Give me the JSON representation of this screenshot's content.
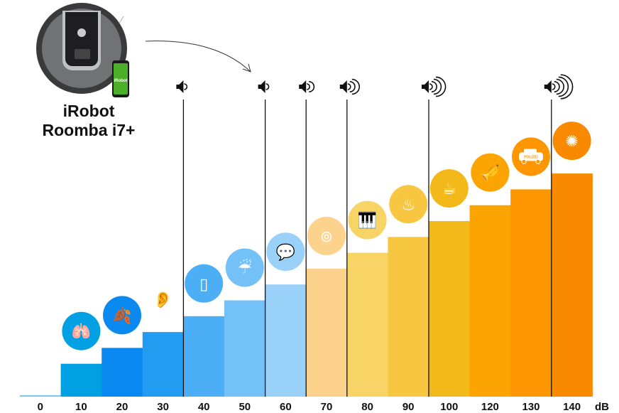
{
  "product": {
    "brand_line": "iRobot",
    "model_line": "Roomba i7+",
    "phone_logo": "iRobot"
  },
  "chart_data": {
    "type": "bar",
    "title": "",
    "xlabel": "",
    "unit_label": "dB",
    "ylabel": "",
    "categories": [
      "0",
      "10",
      "20",
      "30",
      "40",
      "50",
      "60",
      "70",
      "80",
      "90",
      "100",
      "120",
      "130",
      "140"
    ],
    "values": [
      0,
      10,
      20,
      30,
      40,
      50,
      60,
      70,
      80,
      90,
      100,
      120,
      130,
      140
    ],
    "colors": [
      "#7fc6f3",
      "#00a0e2",
      "#0a8af0",
      "#229cf0",
      "#4caff6",
      "#74c1f7",
      "#9ad1f9",
      "#fdd28c",
      "#f8d466",
      "#f7c742",
      "#f3b91b",
      "#fca402",
      "#fd9600",
      "#f98a00"
    ],
    "icons": [
      "",
      "lungs-icon",
      "leaves-icon",
      "ear-icon",
      "fridge-icon",
      "rain-icon",
      "speech-bubble-icon",
      "washing-machine-icon",
      "piano-icon",
      "hair-dryer-icon",
      "coffee-machine-icon",
      "trombone-icon",
      "police-car-icon",
      "fireworks-icon"
    ],
    "icon_glyphs": [
      "",
      "🫁",
      "🍂",
      "👂",
      "▯",
      "☔",
      "💬",
      "⊚",
      "🎹",
      "♨",
      "☕",
      "🎺",
      "🚓",
      "✺"
    ],
    "police_car_text": "POLIZEI",
    "volume_markers": [
      {
        "at_category": "40",
        "waves": 1
      },
      {
        "at_category": "60",
        "waves": 1
      },
      {
        "at_category": "70",
        "waves": 2
      },
      {
        "at_category": "80",
        "waves": 3
      },
      {
        "at_category": "100",
        "waves": 4
      },
      {
        "at_category": "140",
        "waves": 5
      }
    ],
    "grid": false,
    "legend": "none"
  }
}
